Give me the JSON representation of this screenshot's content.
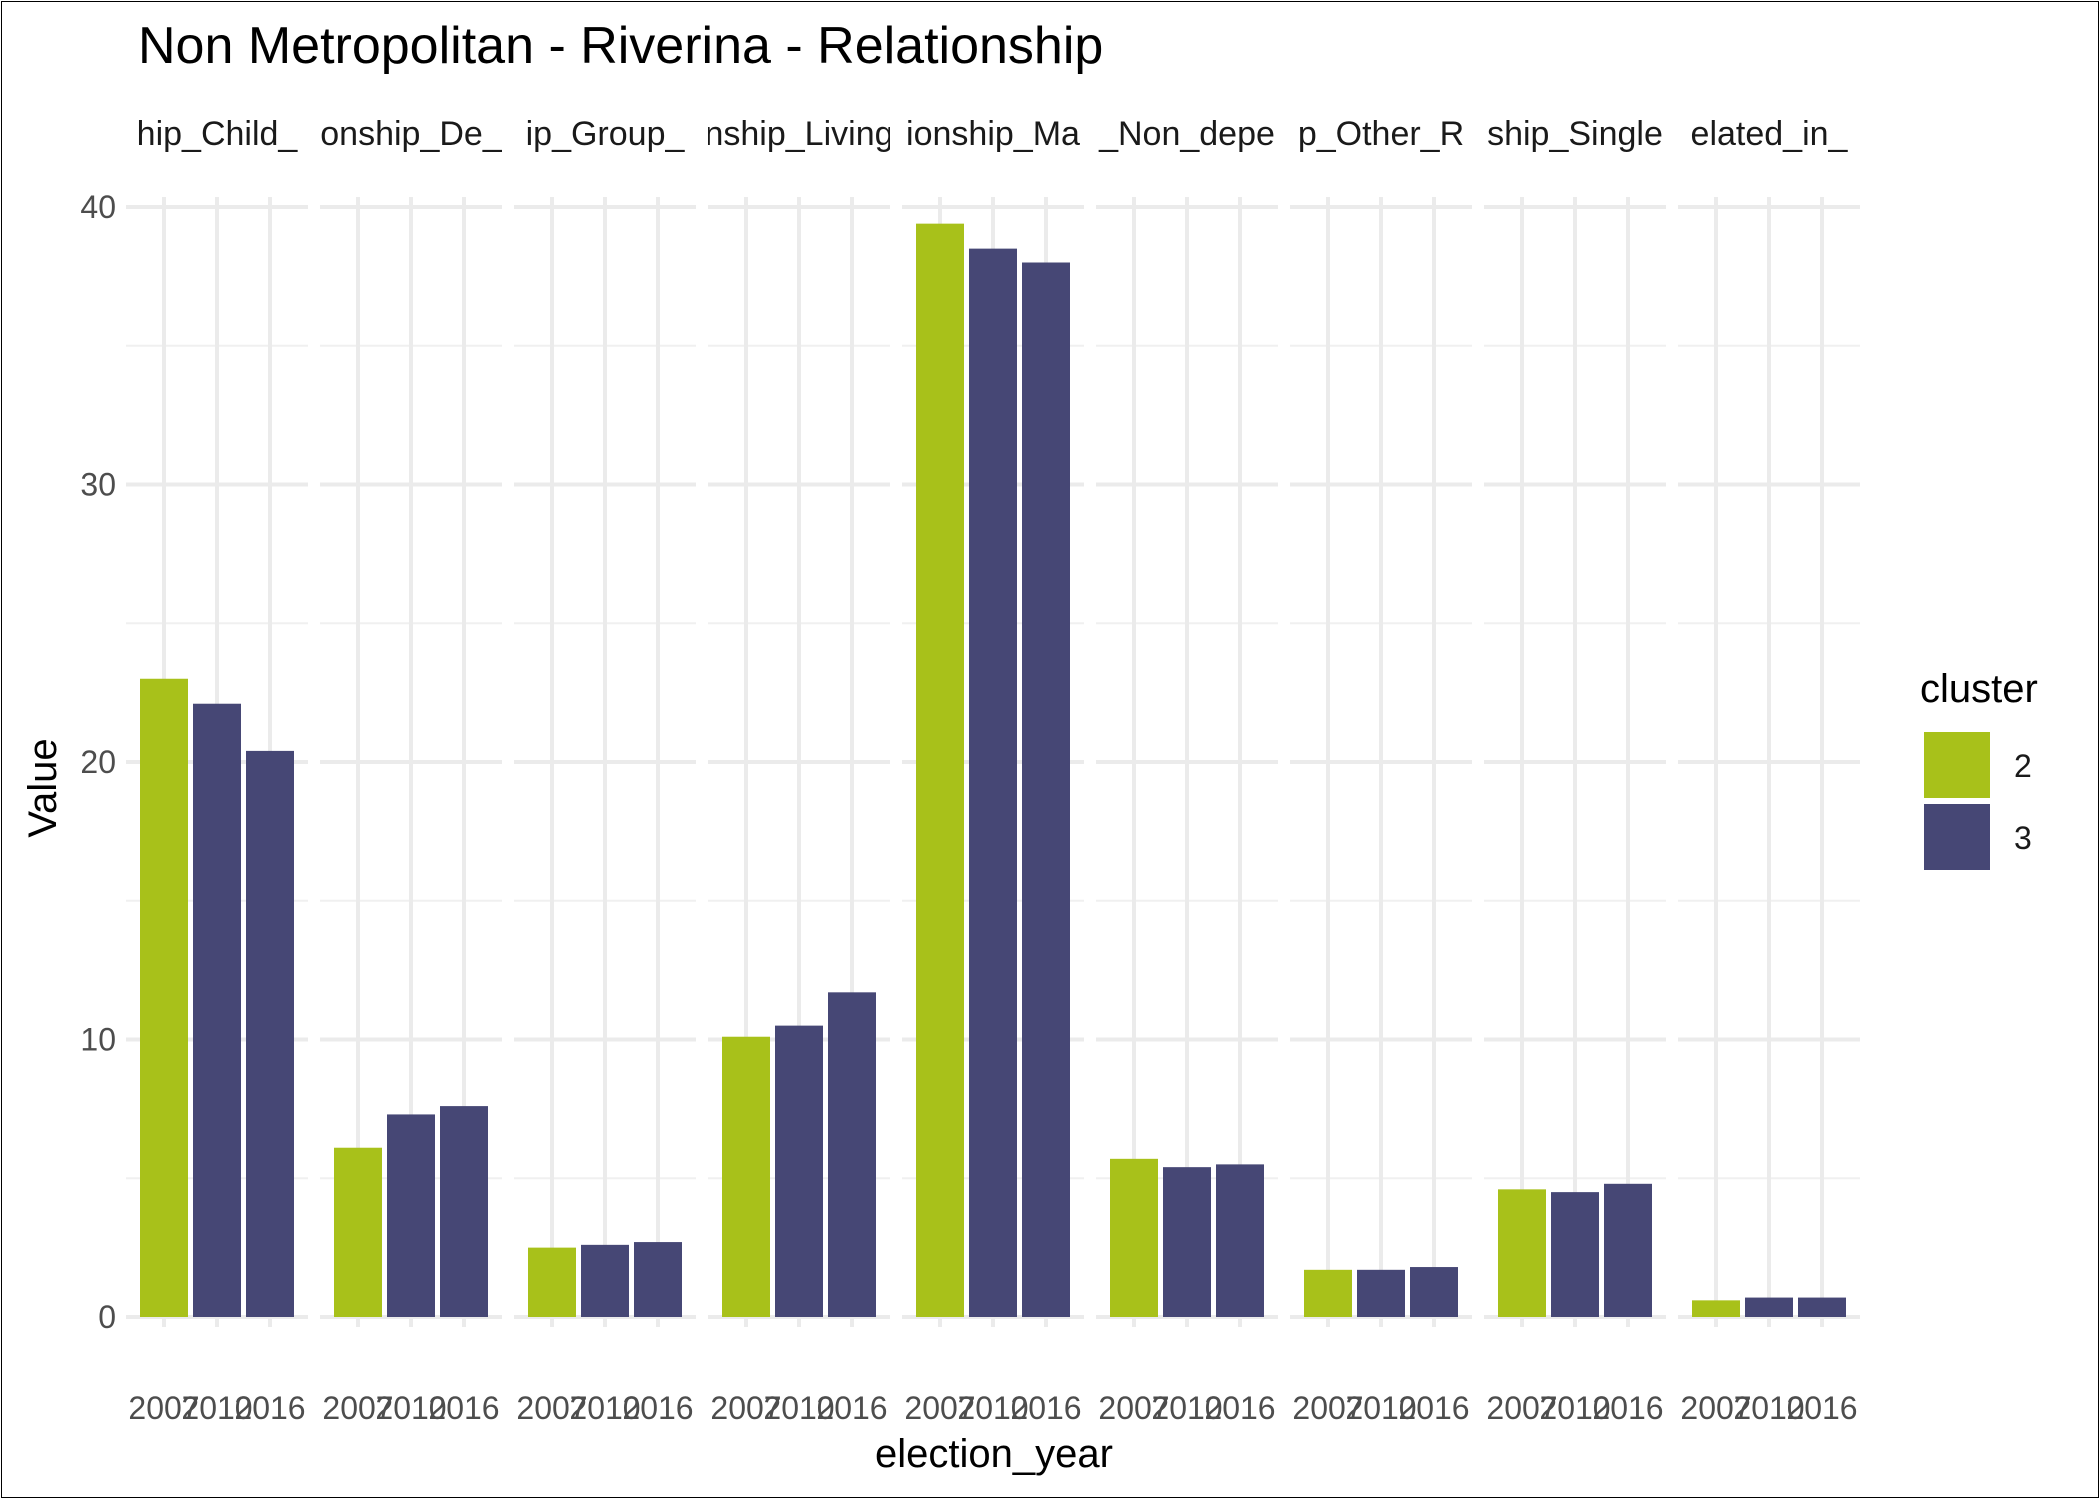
{
  "chart_data": {
    "type": "bar",
    "title": "Non Metropolitan - Riverina - Relationship",
    "xlabel": "election_year",
    "ylabel": "Value",
    "ylim": [
      0,
      40
    ],
    "yticks": [
      0,
      10,
      20,
      30,
      40
    ],
    "grid": true,
    "legend": {
      "title": "cluster",
      "placement": "right",
      "entries": [
        {
          "label": "2",
          "color": "#A8C11A"
        },
        {
          "label": "3",
          "color": "#464775"
        }
      ]
    },
    "x": [
      "2007",
      "2010",
      "2016"
    ],
    "bar_cluster": [
      "2",
      "3",
      "3"
    ],
    "panels": [
      {
        "label": "hip_Child_",
        "values": [
          23.0,
          22.1,
          20.4
        ]
      },
      {
        "label": "onship_De_",
        "values": [
          6.1,
          7.3,
          7.6
        ]
      },
      {
        "label": "ip_Group_",
        "values": [
          2.5,
          2.6,
          2.7
        ]
      },
      {
        "label": "nship_Living",
        "values": [
          10.1,
          10.5,
          11.7
        ]
      },
      {
        "label": "ionship_Ma",
        "values": [
          39.4,
          38.5,
          38.0
        ]
      },
      {
        "label": "_Non_depe",
        "values": [
          5.7,
          5.4,
          5.5
        ]
      },
      {
        "label": "p_Other_R",
        "values": [
          1.7,
          1.7,
          1.8
        ]
      },
      {
        "label": "ship_Single",
        "values": [
          4.6,
          4.5,
          4.8
        ]
      },
      {
        "label": "elated_in_",
        "values": [
          0.6,
          0.7,
          0.7
        ]
      }
    ]
  }
}
